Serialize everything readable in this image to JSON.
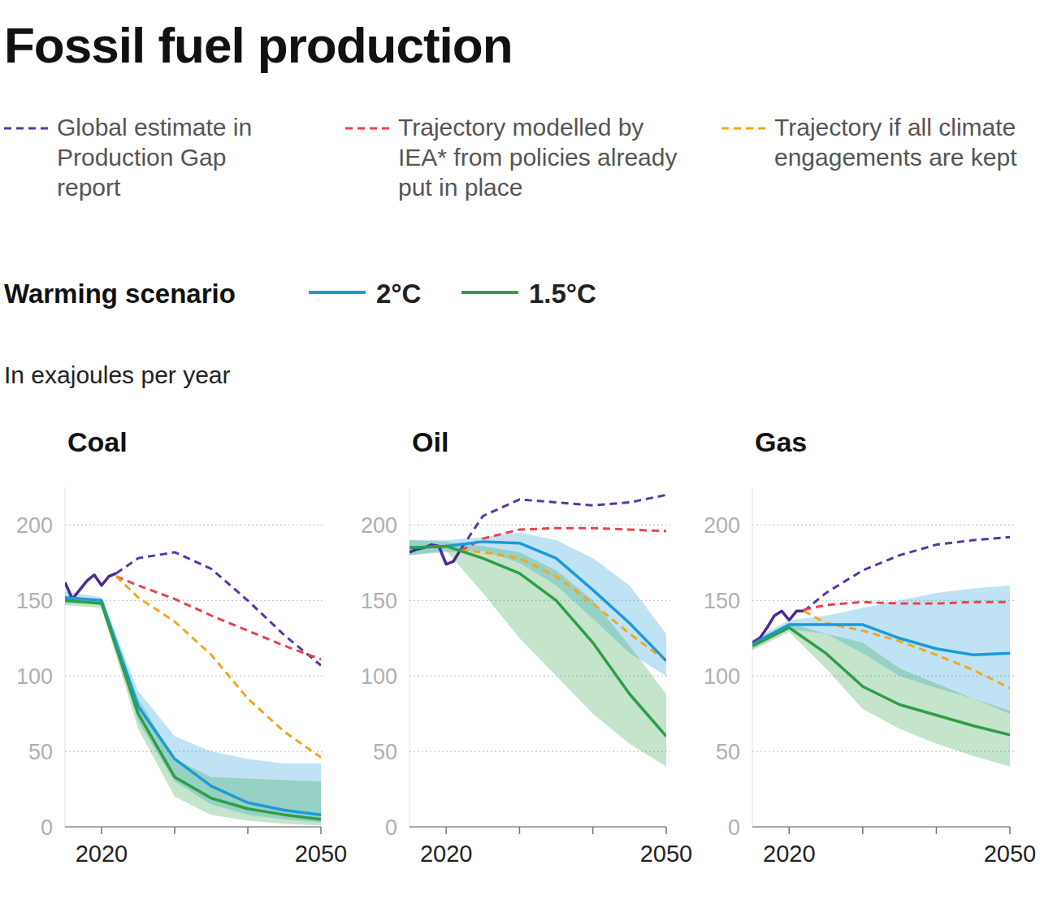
{
  "title": "Fossil fuel production",
  "legend_title": "Warming scenario",
  "subtitle": "In exajoules per year",
  "chart_data": [
    {
      "type": "line",
      "title": "Coal",
      "xlim": [
        2015,
        2050
      ],
      "ylim": [
        0,
        225
      ],
      "xticks": [
        2020,
        {
          "value": 2030,
          "label": null
        },
        {
          "value": 2040,
          "label": null
        },
        2050
      ],
      "yticks": [
        0,
        50,
        100,
        150,
        200
      ],
      "grid": true,
      "series": [
        {
          "color": "#4a2a96",
          "line_style": "solid",
          "x": [
            2015,
            2016,
            2017,
            2018,
            2019,
            2020,
            2021,
            2022
          ],
          "values": [
            162,
            151,
            157,
            163,
            167,
            160,
            166,
            168
          ]
        },
        {
          "name": "Global estimate in Production Gap report",
          "color": "#5b35a8",
          "line_style": "dashed",
          "x": [
            2022,
            2025,
            2030,
            2035,
            2040,
            2045,
            2050
          ],
          "values": [
            168,
            178,
            182,
            171,
            150,
            127,
            107
          ]
        },
        {
          "name": "Trajectory modelled by IEA* from policies already put in place",
          "color": "#e8434f",
          "line_style": "dashed",
          "x": [
            2022,
            2025,
            2030,
            2035,
            2040,
            2045,
            2050
          ],
          "values": [
            166,
            160,
            151,
            140,
            130,
            120,
            111
          ]
        },
        {
          "name": "Trajectory if all climate engagements are kept",
          "color": "#f2a81d",
          "line_style": "dashed",
          "x": [
            2022,
            2025,
            2030,
            2035,
            2040,
            2045,
            2050
          ],
          "values": [
            166,
            152,
            136,
            114,
            85,
            63,
            46
          ]
        },
        {
          "name": "2°C",
          "color": "#1a9bd7",
          "line_style": "solid",
          "x": [
            2015,
            2020,
            2025,
            2030,
            2035,
            2040,
            2045,
            2050
          ],
          "values": [
            152,
            150,
            80,
            45,
            27,
            16,
            11,
            8
          ],
          "lower": [
            148,
            148,
            70,
            30,
            15,
            8,
            5,
            3
          ],
          "upper": [
            156,
            152,
            90,
            60,
            50,
            45,
            42,
            42
          ]
        },
        {
          "name": "1.5°C",
          "color": "#2e9e48",
          "line_style": "solid",
          "x": [
            2015,
            2020,
            2025,
            2030,
            2035,
            2040,
            2045,
            2050
          ],
          "values": [
            150,
            148,
            75,
            33,
            19,
            12,
            8,
            5
          ],
          "lower": [
            147,
            145,
            65,
            20,
            8,
            4,
            2,
            1
          ],
          "upper": [
            153,
            150,
            85,
            45,
            33,
            32,
            31,
            30
          ]
        }
      ]
    },
    {
      "type": "line",
      "title": "Oil",
      "xlim": [
        2015,
        2050
      ],
      "ylim": [
        0,
        225
      ],
      "xticks": [
        2020,
        {
          "value": 2030,
          "label": null
        },
        {
          "value": 2040,
          "label": null
        },
        2050
      ],
      "yticks": [
        0,
        50,
        100,
        150,
        200
      ],
      "grid": true,
      "series": [
        {
          "color": "#4a2a96",
          "line_style": "solid",
          "x": [
            2015,
            2016,
            2017,
            2018,
            2019,
            2020,
            2021,
            2022
          ],
          "values": [
            182,
            184,
            185,
            187,
            186,
            174,
            176,
            184
          ]
        },
        {
          "color": "#5b35a8",
          "line_style": "dashed",
          "x": [
            2022,
            2025,
            2030,
            2035,
            2040,
            2045,
            2050
          ],
          "values": [
            184,
            206,
            217,
            215,
            213,
            215,
            220
          ]
        },
        {
          "color": "#e8434f",
          "line_style": "dashed",
          "x": [
            2022,
            2025,
            2030,
            2035,
            2040,
            2045,
            2050
          ],
          "values": [
            183,
            191,
            197,
            198,
            198,
            197,
            196
          ]
        },
        {
          "color": "#f2a81d",
          "line_style": "dashed",
          "x": [
            2022,
            2025,
            2030,
            2035,
            2040,
            2045,
            2050
          ],
          "values": [
            183,
            182,
            178,
            166,
            148,
            128,
            110
          ]
        },
        {
          "color": "#1a9bd7",
          "line_style": "solid",
          "x": [
            2015,
            2020,
            2025,
            2030,
            2035,
            2040,
            2045,
            2050
          ],
          "values": [
            185,
            186,
            189,
            188,
            178,
            157,
            135,
            110
          ],
          "lower": [
            180,
            182,
            183,
            175,
            160,
            138,
            115,
            100
          ],
          "upper": [
            190,
            190,
            192,
            195,
            190,
            178,
            160,
            128
          ]
        },
        {
          "color": "#2e9e48",
          "line_style": "solid",
          "x": [
            2015,
            2020,
            2025,
            2030,
            2035,
            2040,
            2045,
            2050
          ],
          "values": [
            185,
            186,
            178,
            168,
            150,
            122,
            88,
            60
          ],
          "lower": [
            180,
            183,
            155,
            125,
            100,
            75,
            55,
            40
          ],
          "upper": [
            190,
            189,
            186,
            182,
            170,
            150,
            120,
            88
          ]
        }
      ]
    },
    {
      "type": "line",
      "title": "Gas",
      "xlim": [
        2015,
        2050
      ],
      "ylim": [
        0,
        225
      ],
      "xticks": [
        2020,
        {
          "value": 2030,
          "label": null
        },
        {
          "value": 2040,
          "label": null
        },
        2050
      ],
      "yticks": [
        0,
        50,
        100,
        150,
        200
      ],
      "grid": true,
      "series": [
        {
          "color": "#4a2a96",
          "line_style": "solid",
          "x": [
            2015,
            2016,
            2017,
            2018,
            2019,
            2020,
            2021,
            2022
          ],
          "values": [
            122,
            125,
            132,
            140,
            143,
            137,
            143,
            143
          ]
        },
        {
          "color": "#5b35a8",
          "line_style": "dashed",
          "x": [
            2022,
            2025,
            2030,
            2035,
            2040,
            2045,
            2050
          ],
          "values": [
            143,
            155,
            170,
            180,
            187,
            190,
            192
          ]
        },
        {
          "color": "#e8434f",
          "line_style": "dashed",
          "x": [
            2022,
            2025,
            2030,
            2035,
            2040,
            2045,
            2050
          ],
          "values": [
            144,
            147,
            149,
            148,
            148,
            149,
            149
          ]
        },
        {
          "color": "#f2a81d",
          "line_style": "dashed",
          "x": [
            2022,
            2025,
            2030,
            2035,
            2040,
            2045,
            2050
          ],
          "values": [
            143,
            135,
            130,
            123,
            114,
            104,
            92
          ]
        },
        {
          "color": "#1a9bd7",
          "line_style": "solid",
          "x": [
            2015,
            2020,
            2025,
            2030,
            2035,
            2040,
            2045,
            2050
          ],
          "values": [
            121,
            134,
            134,
            134,
            125,
            118,
            114,
            115
          ],
          "lower": [
            118,
            131,
            128,
            115,
            100,
            92,
            85,
            75
          ],
          "upper": [
            124,
            137,
            140,
            145,
            150,
            155,
            158,
            160
          ]
        },
        {
          "color": "#2e9e48",
          "line_style": "solid",
          "x": [
            2015,
            2020,
            2025,
            2030,
            2035,
            2040,
            2045,
            2050
          ],
          "values": [
            120,
            132,
            115,
            93,
            81,
            74,
            67,
            61
          ],
          "lower": [
            117,
            129,
            105,
            78,
            65,
            55,
            47,
            40
          ],
          "upper": [
            123,
            135,
            128,
            122,
            105,
            95,
            85,
            77
          ]
        }
      ]
    }
  ]
}
